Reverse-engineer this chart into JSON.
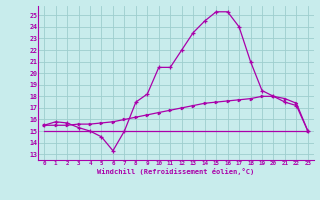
{
  "xlabel": "Windchill (Refroidissement éolien,°C)",
  "xlim": [
    -0.5,
    23.5
  ],
  "ylim": [
    12.5,
    25.8
  ],
  "yticks": [
    13,
    14,
    15,
    16,
    17,
    18,
    19,
    20,
    21,
    22,
    23,
    24,
    25
  ],
  "xticks": [
    0,
    1,
    2,
    3,
    4,
    5,
    6,
    7,
    8,
    9,
    10,
    11,
    12,
    13,
    14,
    15,
    16,
    17,
    18,
    19,
    20,
    21,
    22,
    23
  ],
  "bg_color": "#c8ecec",
  "grid_color": "#9ecece",
  "line_color": "#aa00aa",
  "line1_x": [
    0,
    1,
    2,
    3,
    4,
    5,
    6,
    7,
    8,
    9,
    10,
    11,
    12,
    13,
    14,
    15,
    16,
    17,
    18,
    19,
    20,
    21,
    22,
    23
  ],
  "line1_y": [
    15.5,
    15.8,
    15.7,
    15.3,
    15.0,
    14.5,
    13.3,
    15.0,
    17.5,
    18.2,
    20.5,
    20.5,
    22.0,
    23.5,
    24.5,
    25.3,
    25.3,
    24.0,
    21.0,
    18.5,
    18.0,
    17.5,
    17.2,
    15.0
  ],
  "line2_x": [
    0,
    1,
    2,
    3,
    4,
    5,
    6,
    7,
    8,
    9,
    10,
    11,
    12,
    13,
    14,
    15,
    16,
    17,
    18,
    19,
    20,
    21,
    22,
    23
  ],
  "line2_y": [
    15.5,
    15.5,
    15.5,
    15.6,
    15.6,
    15.7,
    15.8,
    16.0,
    16.2,
    16.4,
    16.6,
    16.8,
    17.0,
    17.2,
    17.4,
    17.5,
    17.6,
    17.7,
    17.8,
    18.0,
    18.0,
    17.8,
    17.4,
    15.0
  ],
  "line3_x": [
    0,
    23
  ],
  "line3_y": [
    15.0,
    15.0
  ]
}
